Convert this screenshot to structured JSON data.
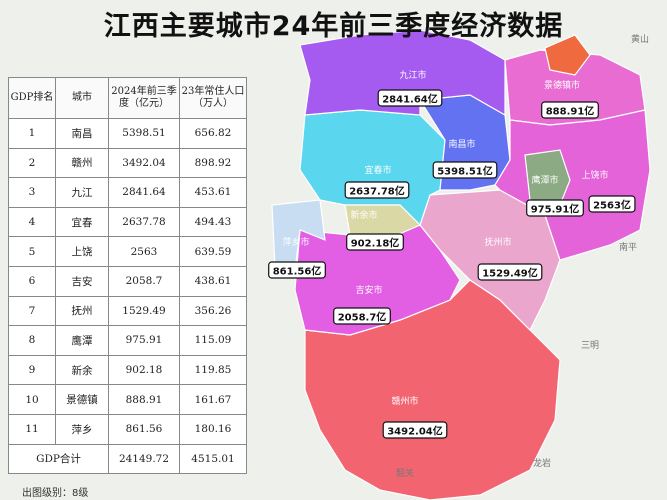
{
  "title": "江西主要城市24年前三季度经济数据",
  "table": {
    "headers": [
      "GDP排名",
      "城市",
      "2024年前三季度（亿元）",
      "23年常住人口（万人）"
    ],
    "rows": [
      [
        "1",
        "南昌",
        "5398.51",
        "656.82"
      ],
      [
        "2",
        "赣州",
        "3492.04",
        "898.92"
      ],
      [
        "3",
        "九江",
        "2841.64",
        "453.61"
      ],
      [
        "4",
        "宜春",
        "2637.78",
        "494.43"
      ],
      [
        "5",
        "上饶",
        "2563",
        "639.59"
      ],
      [
        "6",
        "吉安",
        "2058.7",
        "438.61"
      ],
      [
        "7",
        "抚州",
        "1529.49",
        "356.26"
      ],
      [
        "8",
        "鹰潭",
        "975.91",
        "115.09"
      ],
      [
        "9",
        "新余",
        "902.18",
        "119.85"
      ],
      [
        "10",
        "景德镇",
        "888.91",
        "161.67"
      ],
      [
        "11",
        "萍乡",
        "861.56",
        "180.16"
      ]
    ],
    "total": [
      "GDP合计",
      "24149.72",
      "4515.01"
    ]
  },
  "map": {
    "cities": [
      {
        "name": "九江市",
        "value": "2841.64亿"
      },
      {
        "name": "景德镇市",
        "value": "888.91亿"
      },
      {
        "name": "南昌市",
        "value": "5398.51亿"
      },
      {
        "name": "宜春市",
        "value": "2637.78亿"
      },
      {
        "name": "新余市",
        "value": "902.18亿"
      },
      {
        "name": "萍乡市",
        "value": "861.56亿"
      },
      {
        "name": "鹰潭市",
        "value": "975.91亿"
      },
      {
        "name": "上饶市",
        "value": "2563亿"
      },
      {
        "name": "抚州市",
        "value": "1529.49亿"
      },
      {
        "name": "吉安市",
        "value": "2058.7亿"
      },
      {
        "name": "赣州市",
        "value": "3492.04亿"
      }
    ],
    "places": [
      "黄山",
      "南平",
      "三明",
      "龙岩",
      "韶关"
    ]
  },
  "footer": "出图级别：8级"
}
